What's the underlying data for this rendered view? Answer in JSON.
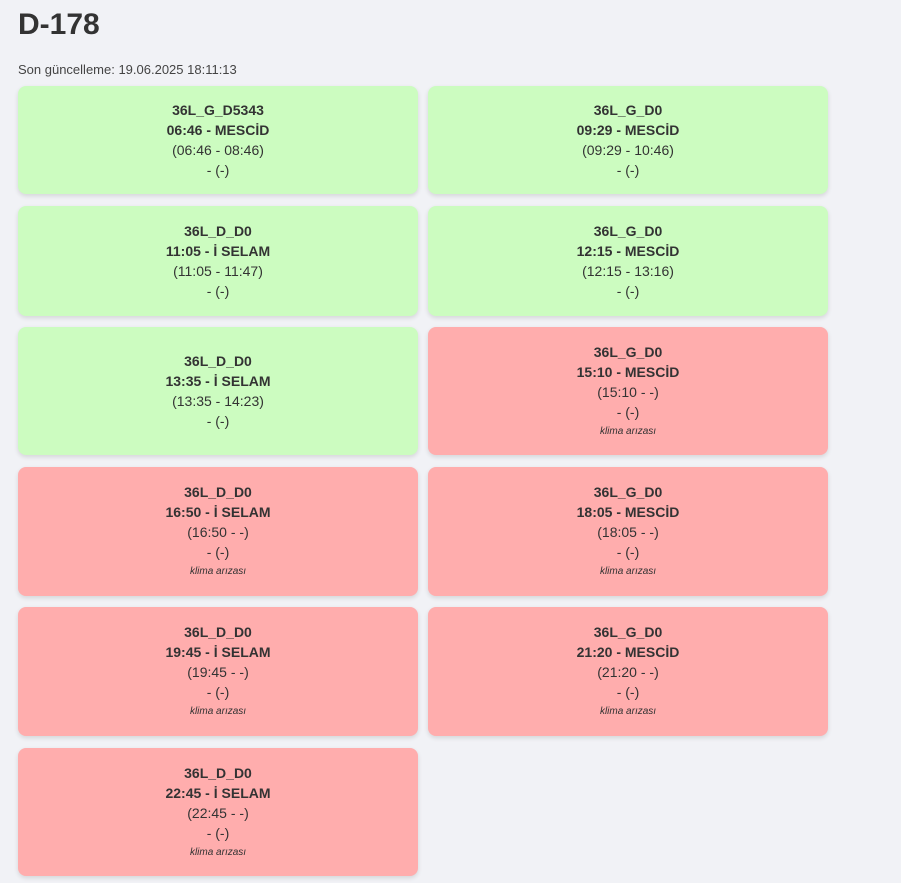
{
  "page": {
    "title": "D-178",
    "updated": "Son güncelleme: 19.06.2025 18:11:13"
  },
  "colors": {
    "ok": "#ccfcc0",
    "fault": "#ffadad",
    "background": "#f1f2f6"
  },
  "cards": [
    {
      "code": "36L_G_D5343",
      "time_place": "06:46 - MESCİD",
      "range": "(06:46 - 08:46)",
      "extra": "- (-)",
      "note": "",
      "status": "ok"
    },
    {
      "code": "36L_G_D0",
      "time_place": "09:29 - MESCİD",
      "range": "(09:29 - 10:46)",
      "extra": "- (-)",
      "note": "",
      "status": "ok"
    },
    {
      "code": "36L_D_D0",
      "time_place": "11:05 - İ SELAM",
      "range": "(11:05 - 11:47)",
      "extra": "- (-)",
      "note": "",
      "status": "ok"
    },
    {
      "code": "36L_G_D0",
      "time_place": "12:15 - MESCİD",
      "range": "(12:15 - 13:16)",
      "extra": "- (-)",
      "note": "",
      "status": "ok"
    },
    {
      "code": "36L_D_D0",
      "time_place": "13:35 - İ SELAM",
      "range": "(13:35 - 14:23)",
      "extra": "- (-)",
      "note": "",
      "status": "ok"
    },
    {
      "code": "36L_G_D0",
      "time_place": "15:10 - MESCİD",
      "range": "(15:10 - -)",
      "extra": "- (-)",
      "note": "klima arızası",
      "status": "fault"
    },
    {
      "code": "36L_D_D0",
      "time_place": "16:50 - İ SELAM",
      "range": "(16:50 - -)",
      "extra": "- (-)",
      "note": "klima arızası",
      "status": "fault"
    },
    {
      "code": "36L_G_D0",
      "time_place": "18:05 - MESCİD",
      "range": "(18:05 - -)",
      "extra": "- (-)",
      "note": "klima arızası",
      "status": "fault"
    },
    {
      "code": "36L_D_D0",
      "time_place": "19:45 - İ SELAM",
      "range": "(19:45 - -)",
      "extra": "- (-)",
      "note": "klima arızası",
      "status": "fault"
    },
    {
      "code": "36L_G_D0",
      "time_place": "21:20 - MESCİD",
      "range": "(21:20 - -)",
      "extra": "- (-)",
      "note": "klima arızası",
      "status": "fault"
    },
    {
      "code": "36L_D_D0",
      "time_place": "22:45 - İ SELAM",
      "range": "(22:45 - -)",
      "extra": "- (-)",
      "note": "klima arızası",
      "status": "fault"
    }
  ]
}
